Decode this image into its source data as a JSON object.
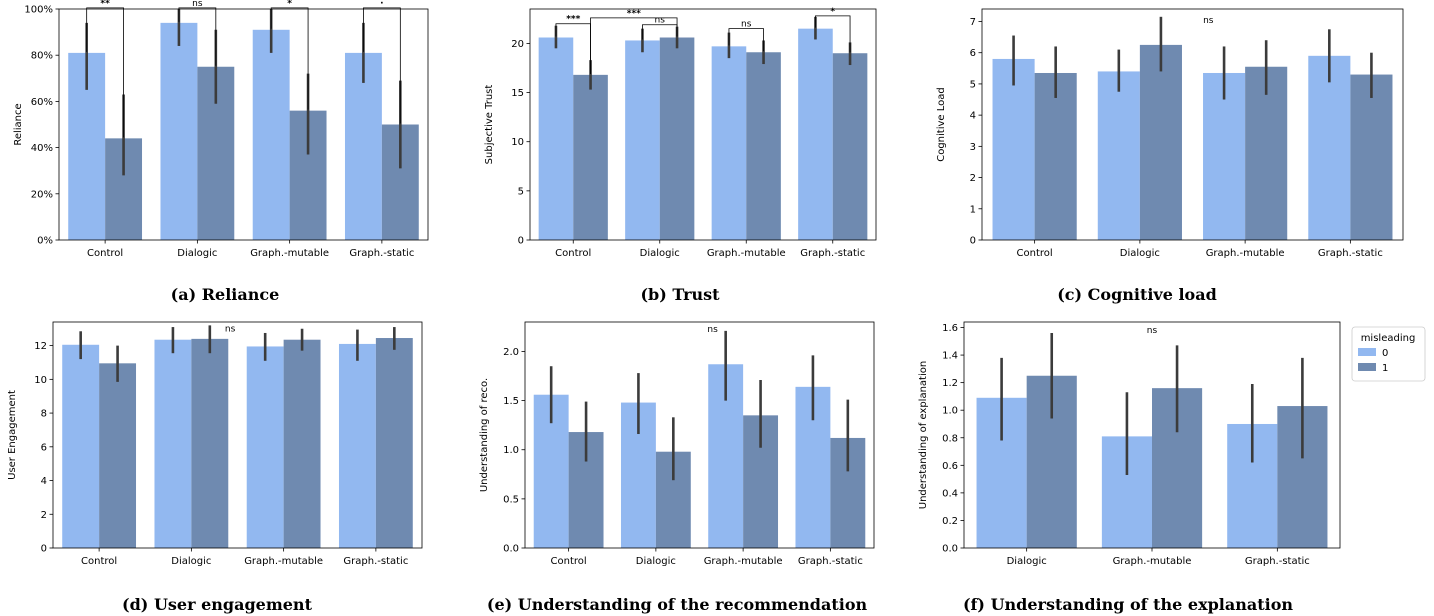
{
  "legend": {
    "title": "misleading",
    "entries": [
      {
        "label": "0",
        "color": "#92b8f0"
      },
      {
        "label": "1",
        "color": "#6f8ab0"
      }
    ]
  },
  "colors": {
    "misleading_0": "#92b8f0",
    "misleading_1": "#6f8ab0",
    "error_bar": "#3b3b3b"
  },
  "chart_data": [
    {
      "id": "a",
      "type": "bar",
      "caption": "(a) Reliance",
      "ylabel": "Reliance",
      "categories": [
        "Control",
        "Dialogic",
        "Graph.-mutable",
        "Graph.-static"
      ],
      "ylim": [
        0,
        100
      ],
      "yticks": [
        0,
        20,
        40,
        60,
        80,
        100
      ],
      "ytick_labels": [
        "0%",
        "20%",
        "40%",
        "60%",
        "80%",
        "100%"
      ],
      "series": [
        {
          "name": "0",
          "values": [
            81,
            94,
            91,
            81
          ],
          "ci": [
            [
              65,
              94
            ],
            [
              84,
              100
            ],
            [
              81,
              100
            ],
            [
              68,
              94
            ]
          ]
        },
        {
          "name": "1",
          "values": [
            44,
            75,
            56,
            50
          ],
          "ci": [
            [
              28,
              63
            ],
            [
              59,
              91
            ],
            [
              37,
              72
            ],
            [
              31,
              69
            ]
          ]
        }
      ],
      "annotations": [
        {
          "text": "**",
          "from": [
            0,
            0
          ],
          "to": [
            0,
            1
          ],
          "top": 100.5
        },
        {
          "text": "ns",
          "from": [
            1,
            0
          ],
          "to": [
            1,
            1
          ],
          "top": 100.5
        },
        {
          "text": "*",
          "from": [
            2,
            0
          ],
          "to": [
            2,
            1
          ],
          "top": 100.5
        },
        {
          "text": "·",
          "from": [
            3,
            0
          ],
          "to": [
            3,
            1
          ],
          "top": 100.5
        }
      ]
    },
    {
      "id": "b",
      "type": "bar",
      "caption": "(b) Trust",
      "ylabel": "Subjective Trust",
      "categories": [
        "Control",
        "Dialogic",
        "Graph.-mutable",
        "Graph.-static"
      ],
      "ylim": [
        0,
        23.5
      ],
      "yticks": [
        0,
        5,
        10,
        15,
        20
      ],
      "ytick_labels": [
        "0",
        "5",
        "10",
        "15",
        "20"
      ],
      "series": [
        {
          "name": "0",
          "values": [
            20.6,
            20.3,
            19.7,
            21.5
          ],
          "ci": [
            [
              19.5,
              21.8
            ],
            [
              19.1,
              21.5
            ],
            [
              18.5,
              21.1
            ],
            [
              20.4,
              22.7
            ]
          ]
        },
        {
          "name": "1",
          "values": [
            16.8,
            20.6,
            19.1,
            19.0
          ],
          "ci": [
            [
              15.3,
              18.3
            ],
            [
              19.5,
              21.7
            ],
            [
              17.9,
              20.3
            ],
            [
              17.8,
              20.1
            ]
          ]
        }
      ],
      "annotations": [
        {
          "text": "***",
          "from": [
            0,
            0
          ],
          "to": [
            0,
            1
          ],
          "top": 22.0
        },
        {
          "text": "***",
          "from": [
            0,
            1
          ],
          "to": [
            1,
            1
          ],
          "top": 22.6
        },
        {
          "text": "ns",
          "from": [
            1,
            0
          ],
          "to": [
            1,
            1
          ],
          "top": 21.9
        },
        {
          "text": "ns",
          "from": [
            2,
            0
          ],
          "to": [
            2,
            1
          ],
          "top": 21.5
        },
        {
          "text": "*",
          "from": [
            3,
            0
          ],
          "to": [
            3,
            1
          ],
          "top": 22.8
        }
      ]
    },
    {
      "id": "c",
      "type": "bar",
      "caption": "(c) Cognitive load",
      "ylabel": "Cognitive Load",
      "categories": [
        "Control",
        "Dialogic",
        "Graph.-mutable",
        "Graph.-static"
      ],
      "ylim": [
        0,
        7.4
      ],
      "yticks": [
        0,
        1,
        2,
        3,
        4,
        5,
        6,
        7
      ],
      "ytick_labels": [
        "0",
        "1",
        "2",
        "3",
        "4",
        "5",
        "6",
        "7"
      ],
      "series": [
        {
          "name": "0",
          "values": [
            5.8,
            5.4,
            5.35,
            5.9
          ],
          "ci": [
            [
              4.95,
              6.55
            ],
            [
              4.75,
              6.1
            ],
            [
              4.5,
              6.2
            ],
            [
              5.05,
              6.75
            ]
          ]
        },
        {
          "name": "1",
          "values": [
            5.35,
            6.25,
            5.55,
            5.3
          ],
          "ci": [
            [
              4.55,
              6.2
            ],
            [
              5.4,
              7.15
            ],
            [
              4.65,
              6.4
            ],
            [
              4.55,
              6.0
            ]
          ]
        }
      ],
      "annotations": [
        {
          "text": "ns",
          "x_group": 1.65,
          "y": 6.95
        }
      ]
    },
    {
      "id": "d",
      "type": "bar",
      "caption": "(d) User engagement",
      "ylabel": "User Engagement",
      "categories": [
        "Control",
        "Dialogic",
        "Graph.-mutable",
        "Graph.-static"
      ],
      "ylim": [
        0,
        13.4
      ],
      "yticks": [
        0,
        2,
        4,
        6,
        8,
        10,
        12
      ],
      "ytick_labels": [
        "0",
        "2",
        "4",
        "6",
        "8",
        "10",
        "12"
      ],
      "series": [
        {
          "name": "0",
          "values": [
            12.05,
            12.35,
            11.95,
            12.1
          ],
          "ci": [
            [
              11.2,
              12.85
            ],
            [
              11.55,
              13.1
            ],
            [
              11.1,
              12.75
            ],
            [
              11.1,
              12.95
            ]
          ]
        },
        {
          "name": "1",
          "values": [
            10.95,
            12.4,
            12.35,
            12.45
          ],
          "ci": [
            [
              9.85,
              12.0
            ],
            [
              11.55,
              13.2
            ],
            [
              11.7,
              13.0
            ],
            [
              11.75,
              13.1
            ]
          ]
        }
      ],
      "annotations": [
        {
          "text": "ns",
          "x_group": 1.42,
          "y": 12.85
        }
      ]
    },
    {
      "id": "e",
      "type": "bar",
      "caption": "(e) Understanding of the recommendation",
      "ylabel": "Understanding of reco.",
      "categories": [
        "Control",
        "Dialogic",
        "Graph.-mutable",
        "Graph.-static"
      ],
      "ylim": [
        0,
        2.3
      ],
      "yticks": [
        0.0,
        0.5,
        1.0,
        1.5,
        2.0
      ],
      "ytick_labels": [
        "0.0",
        "0.5",
        "1.0",
        "1.5",
        "2.0"
      ],
      "series": [
        {
          "name": "0",
          "values": [
            1.56,
            1.48,
            1.87,
            1.64
          ],
          "ci": [
            [
              1.27,
              1.85
            ],
            [
              1.16,
              1.78
            ],
            [
              1.5,
              2.21
            ],
            [
              1.3,
              1.96
            ]
          ]
        },
        {
          "name": "1",
          "values": [
            1.18,
            0.98,
            1.35,
            1.12
          ],
          "ci": [
            [
              0.88,
              1.49
            ],
            [
              0.69,
              1.33
            ],
            [
              1.02,
              1.71
            ],
            [
              0.78,
              1.51
            ]
          ]
        }
      ],
      "annotations": [
        {
          "text": "ns",
          "x_group": 1.65,
          "y": 2.2
        }
      ]
    },
    {
      "id": "f",
      "type": "bar",
      "caption": "(f) Understanding of the explanation",
      "ylabel": "Understanding of explanation",
      "categories": [
        "Dialogic",
        "Graph.-mutable",
        "Graph.-static"
      ],
      "ylim": [
        0,
        1.64
      ],
      "yticks": [
        0.0,
        0.2,
        0.4,
        0.6,
        0.8,
        1.0,
        1.2,
        1.4,
        1.6
      ],
      "ytick_labels": [
        "0.0",
        "0.2",
        "0.4",
        "0.6",
        "0.8",
        "1.0",
        "1.2",
        "1.4",
        "1.6"
      ],
      "series": [
        {
          "name": "0",
          "values": [
            1.09,
            0.81,
            0.9
          ],
          "ci": [
            [
              0.78,
              1.38
            ],
            [
              0.53,
              1.13
            ],
            [
              0.62,
              1.19
            ]
          ]
        },
        {
          "name": "1",
          "values": [
            1.25,
            1.16,
            1.03
          ],
          "ci": [
            [
              0.94,
              1.56
            ],
            [
              0.84,
              1.47
            ],
            [
              0.65,
              1.38
            ]
          ]
        }
      ],
      "annotations": [
        {
          "text": "ns",
          "x_group": 1.0,
          "y": 1.56
        }
      ]
    }
  ]
}
